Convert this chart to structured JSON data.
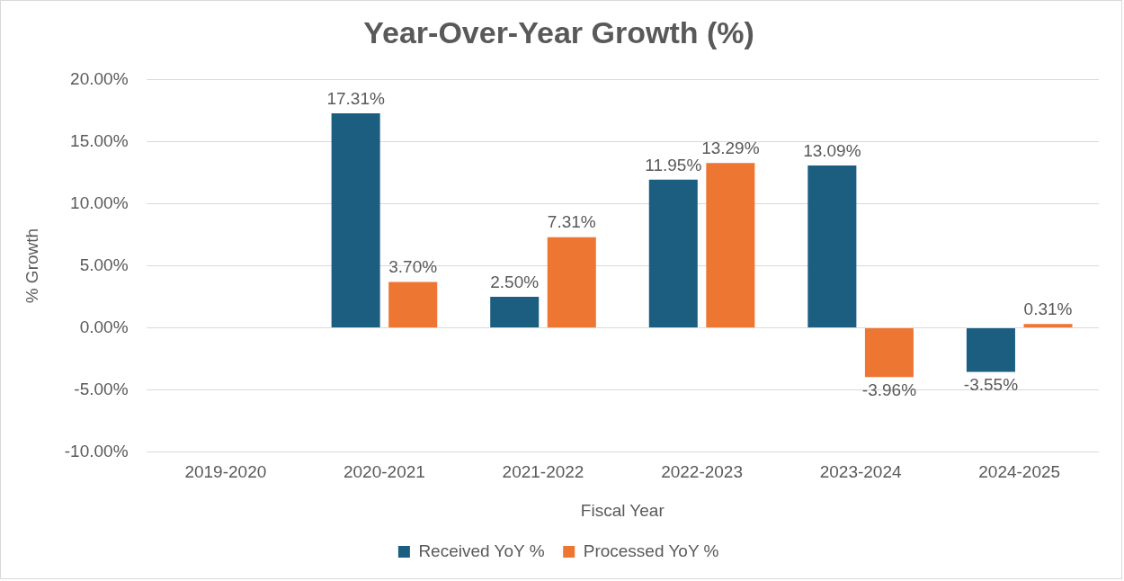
{
  "chart_data": {
    "type": "bar",
    "title": "Year-Over-Year Growth (%)",
    "xlabel": "Fiscal Year",
    "ylabel": "% Growth",
    "categories": [
      "2019-2020",
      "2020-2021",
      "2021-2022",
      "2022-2023",
      "2023-2024",
      "2024-2025"
    ],
    "series": [
      {
        "name": "Received YoY %",
        "color": "#1b5e80",
        "values": [
          null,
          17.31,
          2.5,
          11.95,
          13.09,
          -3.55
        ],
        "value_labels": [
          null,
          "17.31%",
          "2.50%",
          "11.95%",
          "13.09%",
          "-3.55%"
        ]
      },
      {
        "name": "Processed YoY %",
        "color": "#ee7633",
        "values": [
          null,
          3.7,
          7.31,
          13.29,
          -3.96,
          0.31
        ],
        "value_labels": [
          null,
          "3.70%",
          "7.31%",
          "13.29%",
          "-3.96%",
          "0.31%"
        ]
      }
    ],
    "ylim": [
      -10,
      20
    ],
    "yticks": [
      {
        "value": -10,
        "label": "-10.00%"
      },
      {
        "value": -5,
        "label": "-5.00%"
      },
      {
        "value": 0,
        "label": "0.00%"
      },
      {
        "value": 5,
        "label": "5.00%"
      },
      {
        "value": 10,
        "label": "10.00%"
      },
      {
        "value": 15,
        "label": "15.00%"
      },
      {
        "value": 20,
        "label": "20.00%"
      }
    ],
    "grid": "y",
    "legend": "bottom"
  }
}
